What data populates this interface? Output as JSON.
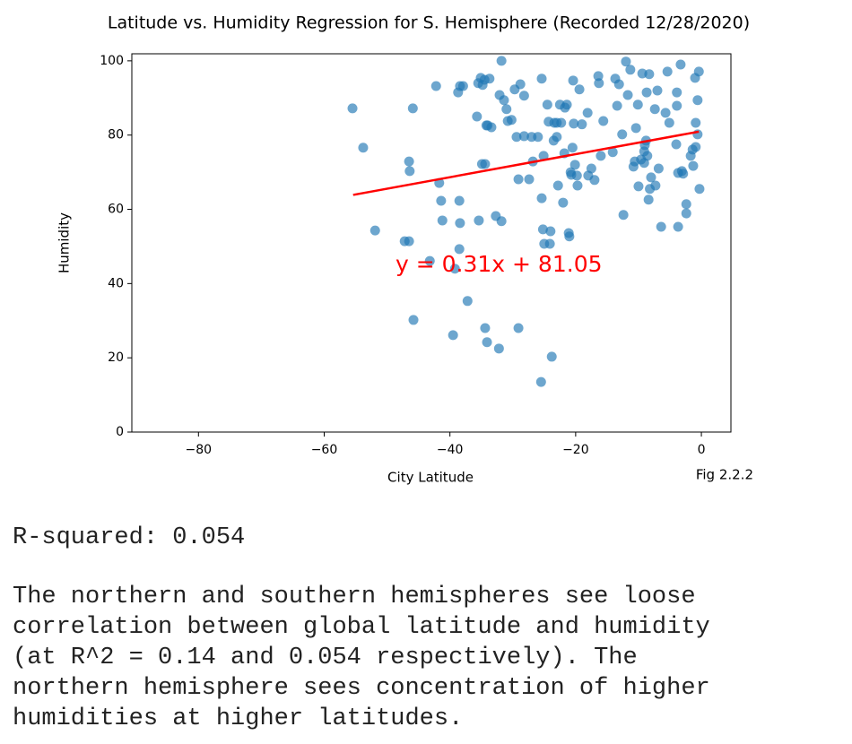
{
  "chart_data": {
    "type": "scatter",
    "title": "Latitude vs. Humidity Regression for S. Hemisphere (Recorded 12/28/2020)",
    "xlabel": "City Latitude",
    "ylabel": "Humidity",
    "figure_label": "Fig 2.2.2",
    "annotation": "y = 0.31x + 81.05",
    "color": "#1f77b4",
    "xlim": [
      -90.6,
      4.7
    ],
    "ylim": [
      0,
      101.9
    ],
    "xticks": [
      {
        "value": -80,
        "label": "−80"
      },
      {
        "value": -60,
        "label": "−60"
      },
      {
        "value": -40,
        "label": "−40"
      },
      {
        "value": -20,
        "label": "−20"
      },
      0
    ],
    "yticks": [
      0,
      20,
      40,
      60,
      80,
      100
    ],
    "x": [
      -55.5,
      -53.8,
      -51.9,
      -47.2,
      -46.5,
      -46.5,
      -46.4,
      -45.9,
      -45.8,
      -43.2,
      -42.2,
      -41.7,
      -41.4,
      -41.2,
      -39.5,
      -39.2,
      -38.7,
      -38.5,
      -38.4,
      -38.5,
      -38.4,
      -37.9,
      -37.2,
      -35.5,
      -35.1,
      -34.8,
      -34.5,
      -34.2,
      -34.0,
      -34.9,
      -34.4,
      -35.4,
      -35.7,
      -34.4,
      -34.1,
      -33.7,
      -33.4,
      -32.7,
      -32.2,
      -31.8,
      -31.8,
      -32.1,
      -31.4,
      -31.0,
      -30.8,
      -30.2,
      -29.7,
      -29.4,
      -29.1,
      -29.1,
      -28.8,
      -28.2,
      -28.2,
      -27.4,
      -27.0,
      -26.8,
      -26.0,
      -25.4,
      -25.4,
      -25.2,
      -25.0,
      -24.1,
      -25.1,
      -24.5,
      -24.3,
      -25.5,
      -24.0,
      -23.8,
      -23.5,
      -23.4,
      -23.0,
      -23.0,
      -22.8,
      -22.5,
      -22.3,
      -22.0,
      -21.8,
      -21.7,
      -21.4,
      -21.1,
      -21.0,
      -20.8,
      -20.7,
      -20.5,
      -20.4,
      -20.3,
      -20.1,
      -19.8,
      -19.7,
      -19.4,
      -19.0,
      -18.1,
      -18.0,
      -17.5,
      -17.0,
      -16.4,
      -16.3,
      -16.0,
      -15.6,
      -14.1,
      -13.7,
      -13.4,
      -13.1,
      -12.6,
      -12.4,
      -12.0,
      -11.7,
      -11.3,
      -10.8,
      -10.6,
      -10.4,
      -10.1,
      -10.0,
      -9.4,
      -9.6,
      -9.1,
      -9.1,
      -9.0,
      -8.8,
      -8.7,
      -8.6,
      -8.4,
      -8.3,
      -8.2,
      -8.0,
      -7.4,
      -7.3,
      -7.0,
      -6.8,
      -6.4,
      -5.7,
      -5.4,
      -5.1,
      -4.0,
      -3.9,
      -3.7,
      -3.9,
      -3.7,
      -3.3,
      -3.1,
      -2.9,
      -2.4,
      -2.4,
      -1.7,
      -1.4,
      -1.3,
      -1.0,
      -0.9,
      -0.6,
      -0.9,
      -0.6,
      -0.4,
      -0.3
    ],
    "values": [
      87.2,
      76.6,
      54.3,
      51.4,
      51.4,
      72.9,
      70.3,
      87.2,
      30.2,
      46.1,
      93.2,
      67.1,
      62.3,
      57.0,
      26.1,
      44.0,
      91.5,
      62.3,
      56.3,
      49.3,
      93.2,
      93.2,
      35.3,
      94.0,
      95.4,
      93.5,
      94.9,
      82.6,
      82.6,
      72.2,
      72.2,
      57.0,
      85.0,
      28.0,
      24.2,
      95.2,
      82.1,
      58.2,
      22.5,
      100.0,
      56.8,
      90.8,
      89.4,
      87.0,
      83.8,
      84.1,
      92.3,
      79.5,
      68.1,
      28.0,
      93.7,
      90.6,
      79.7,
      68.1,
      79.5,
      72.9,
      79.5,
      95.2,
      63.0,
      54.6,
      50.7,
      50.7,
      74.4,
      88.2,
      83.6,
      13.5,
      54.1,
      20.3,
      78.5,
      83.3,
      83.3,
      79.5,
      66.4,
      88.2,
      83.3,
      61.8,
      75.1,
      87.4,
      88.2,
      53.6,
      52.7,
      70.0,
      69.3,
      76.6,
      94.7,
      83.1,
      72.0,
      69.1,
      66.4,
      92.3,
      82.9,
      86.0,
      69.1,
      71.0,
      67.9,
      95.9,
      94.0,
      74.4,
      83.8,
      75.4,
      95.2,
      87.9,
      93.7,
      80.2,
      58.5,
      99.8,
      90.8,
      97.6,
      71.5,
      72.9,
      81.9,
      88.2,
      66.2,
      96.6,
      73.4,
      72.5,
      75.6,
      77.3,
      78.5,
      91.5,
      74.4,
      62.6,
      96.4,
      65.5,
      68.6,
      87.0,
      66.4,
      92.0,
      71.0,
      55.3,
      86.0,
      97.1,
      83.3,
      77.5,
      91.5,
      69.8,
      87.9,
      55.3,
      99.0,
      70.3,
      69.6,
      61.4,
      58.9,
      74.4,
      76.1,
      71.7,
      95.4,
      83.3,
      80.2,
      76.8,
      89.4,
      97.1,
      65.5
    ],
    "regression": {
      "x": [
        -55.4,
        -0.4
      ],
      "values": [
        63.88,
        80.93
      ],
      "color": "#ff0000"
    }
  },
  "output": {
    "r_squared": "R-squared: 0.054",
    "paragraph_lines": [
      "The northern and southern hemispheres see loose",
      "correlation between global latitude and humidity",
      "(at R^2 = 0.14 and 0.054 respectively). The",
      "northern hemisphere sees concentration of higher",
      "humidities at higher latitudes."
    ]
  }
}
